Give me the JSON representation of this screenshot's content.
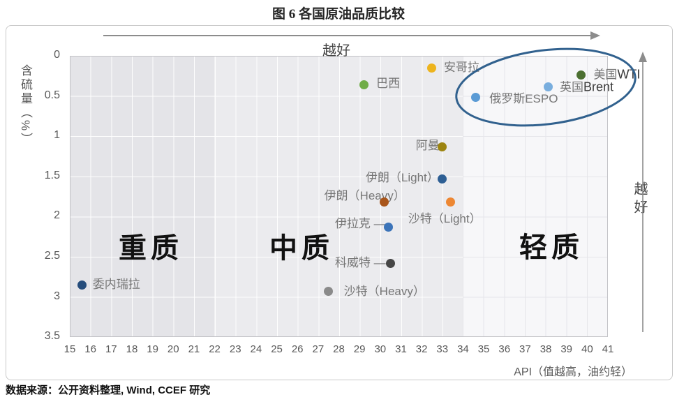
{
  "title": "图 6 各国原油品质比较",
  "source": "数据来源：公开资料整理, Wind, CCEF 研究",
  "chart_data": {
    "type": "scatter",
    "title": "图 6 各国原油品质比较",
    "xlabel": "API（值越高，油约轻）",
    "ylabel": "含硫量（%）",
    "xlim": [
      15,
      41
    ],
    "ylim": [
      0,
      3.5
    ],
    "y_axis_inverted": true,
    "grid": true,
    "x_ticks": [
      15,
      16,
      17,
      18,
      19,
      20,
      21,
      22,
      23,
      24,
      25,
      26,
      27,
      28,
      29,
      30,
      31,
      32,
      33,
      34,
      35,
      36,
      37,
      38,
      39,
      40,
      41
    ],
    "y_ticks": [
      "0",
      "0.5",
      "1",
      "1.5",
      "2",
      "2.5",
      "3",
      "3.5"
    ],
    "regions": [
      {
        "name": "heavy",
        "label": "重质",
        "api_from": 15,
        "api_to": 22,
        "color": "#e4e4e8"
      },
      {
        "name": "medium",
        "label": "中质",
        "api_from": 22,
        "api_to": 34,
        "color": "#ebebee"
      },
      {
        "name": "light",
        "label": "轻质",
        "api_from": 34,
        "api_to": 41,
        "color": "#f7f7f9"
      }
    ],
    "points": [
      {
        "name": "venezuela",
        "label": "委内瑞拉",
        "label_suffix": "",
        "api": 15.6,
        "sulfur": 2.85,
        "color": "#264d7c"
      },
      {
        "name": "brazil",
        "label": "巴西",
        "label_suffix": "",
        "api": 29.2,
        "sulfur": 0.36,
        "color": "#70ad47"
      },
      {
        "name": "angola",
        "label": "安哥拉",
        "label_suffix": "",
        "api": 32.5,
        "sulfur": 0.15,
        "color": "#edb41e"
      },
      {
        "name": "oman",
        "label": "阿曼",
        "label_suffix": "",
        "api": 33.0,
        "sulfur": 1.13,
        "color": "#9c8410"
      },
      {
        "name": "iran-light",
        "label": "伊朗（Light）",
        "label_suffix": "",
        "api": 33.0,
        "sulfur": 1.53,
        "color": "#2e5f94"
      },
      {
        "name": "iran-heavy",
        "label": "伊朗（Heavy）",
        "label_suffix": "",
        "api": 30.2,
        "sulfur": 1.82,
        "color": "#a9561b"
      },
      {
        "name": "saudi-light",
        "label": "沙特（Light）",
        "label_suffix": "",
        "api": 33.4,
        "sulfur": 1.82,
        "color": "#ed8733"
      },
      {
        "name": "iraq",
        "label": "伊拉克 —",
        "label_suffix": "",
        "api": 30.4,
        "sulfur": 2.13,
        "color": "#3c74b9"
      },
      {
        "name": "kuwait",
        "label": "科威特 —",
        "label_suffix": "",
        "api": 30.5,
        "sulfur": 2.58,
        "color": "#464646"
      },
      {
        "name": "saudi-heavy",
        "label": "沙特（Heavy）",
        "label_suffix": "",
        "api": 27.5,
        "sulfur": 2.93,
        "color": "#8a8a8a"
      },
      {
        "name": "russia-espo",
        "label": "俄罗斯ESPO",
        "label_suffix": "",
        "api": 34.6,
        "sulfur": 0.52,
        "color": "#5b9bd5"
      },
      {
        "name": "uk-brent",
        "label": "英国",
        "label_suffix": "Brent",
        "api": 38.1,
        "sulfur": 0.39,
        "color": "#79aede"
      },
      {
        "name": "us-wti",
        "label": "美国",
        "label_suffix": "WTI",
        "api": 39.7,
        "sulfur": 0.24,
        "color": "#4c7031"
      }
    ],
    "annotations": {
      "top_arrow_label": "越好",
      "right_arrow_label": "越好",
      "arrow_color": "#8c8c8c",
      "highlight_ellipse": {
        "around": [
          "俄罗斯ESPO",
          "英国Brent",
          "美国WTI"
        ],
        "color": "#31618e"
      }
    }
  }
}
